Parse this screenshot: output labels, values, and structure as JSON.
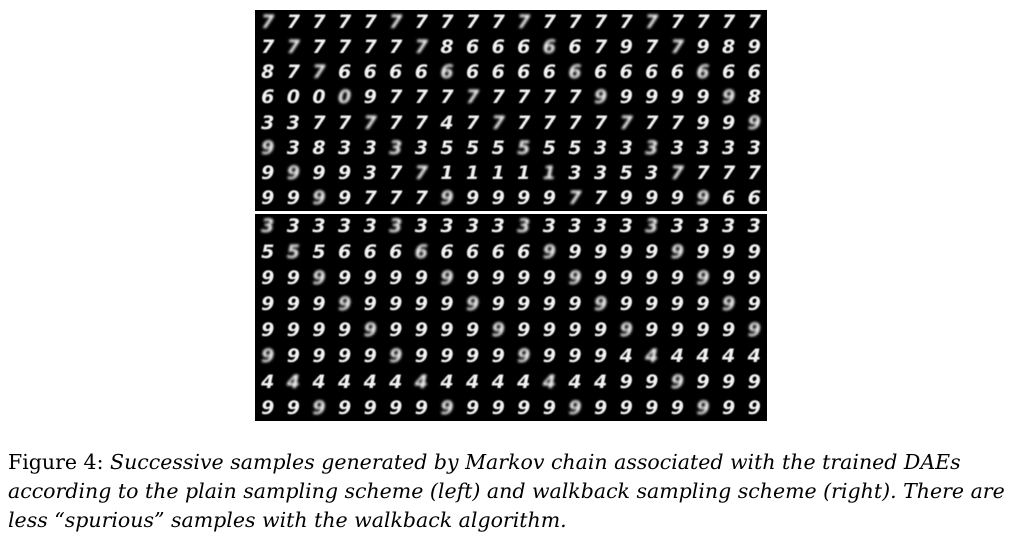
{
  "figure": {
    "top_panel": {
      "rows": [
        [
          "7",
          "7",
          "7",
          "7",
          "7",
          "7",
          "7",
          "7",
          "7",
          "7",
          "7",
          "7",
          "7",
          "7",
          "7",
          "7",
          "7",
          "7",
          "7",
          "7"
        ],
        [
          "7",
          "7",
          "7",
          "7",
          "7",
          "7",
          "7",
          "8",
          "6",
          "6",
          "6",
          "6",
          "6",
          "7",
          "9",
          "7",
          "7",
          "9",
          "8",
          "9"
        ],
        [
          "8",
          "7",
          "7",
          "6",
          "6",
          "6",
          "6",
          "6",
          "6",
          "6",
          "6",
          "6",
          "6",
          "6",
          "6",
          "6",
          "6",
          "6",
          "6",
          "6"
        ],
        [
          "6",
          "0",
          "0",
          "0",
          "9",
          "7",
          "7",
          "7",
          "7",
          "7",
          "7",
          "7",
          "7",
          "9",
          "9",
          "9",
          "9",
          "9",
          "9",
          "8"
        ],
        [
          "3",
          "3",
          "7",
          "7",
          "7",
          "7",
          "7",
          "4",
          "7",
          "7",
          "7",
          "7",
          "7",
          "7",
          "7",
          "7",
          "7",
          "9",
          "9",
          "9"
        ],
        [
          "9",
          "3",
          "8",
          "3",
          "3",
          "3",
          "3",
          "5",
          "5",
          "5",
          "5",
          "5",
          "5",
          "3",
          "3",
          "3",
          "3",
          "3",
          "3",
          "3"
        ],
        [
          "9",
          "9",
          "9",
          "9",
          "3",
          "7",
          "7",
          "1",
          "1",
          "1",
          "1",
          "1",
          "3",
          "3",
          "5",
          "3",
          "7",
          "7",
          "7",
          "7"
        ],
        [
          "9",
          "9",
          "9",
          "9",
          "7",
          "7",
          "7",
          "9",
          "9",
          "9",
          "9",
          "9",
          "7",
          "7",
          "9",
          "9",
          "9",
          "9",
          "6",
          "6"
        ]
      ]
    },
    "bottom_panel": {
      "rows": [
        [
          "3",
          "3",
          "3",
          "3",
          "3",
          "3",
          "3",
          "3",
          "3",
          "3",
          "3",
          "3",
          "3",
          "3",
          "3",
          "3",
          "3",
          "3",
          "3",
          "3"
        ],
        [
          "5",
          "5",
          "5",
          "6",
          "6",
          "6",
          "6",
          "6",
          "6",
          "6",
          "6",
          "9",
          "9",
          "9",
          "9",
          "9",
          "9",
          "9",
          "9",
          "9"
        ],
        [
          "9",
          "9",
          "9",
          "9",
          "9",
          "9",
          "9",
          "9",
          "9",
          "9",
          "9",
          "9",
          "9",
          "9",
          "9",
          "9",
          "9",
          "9",
          "9",
          "9"
        ],
        [
          "9",
          "9",
          "9",
          "9",
          "9",
          "9",
          "9",
          "9",
          "9",
          "9",
          "9",
          "9",
          "9",
          "9",
          "9",
          "9",
          "9",
          "9",
          "9",
          "9"
        ],
        [
          "9",
          "9",
          "9",
          "9",
          "9",
          "9",
          "9",
          "9",
          "9",
          "9",
          "9",
          "9",
          "9",
          "9",
          "9",
          "9",
          "9",
          "9",
          "9",
          "9"
        ],
        [
          "9",
          "9",
          "9",
          "9",
          "9",
          "9",
          "9",
          "9",
          "9",
          "9",
          "9",
          "9",
          "9",
          "9",
          "4",
          "4",
          "4",
          "4",
          "4",
          "4"
        ],
        [
          "4",
          "4",
          "4",
          "4",
          "4",
          "4",
          "4",
          "4",
          "4",
          "4",
          "4",
          "4",
          "4",
          "4",
          "9",
          "9",
          "9",
          "9",
          "9",
          "9"
        ],
        [
          "9",
          "9",
          "9",
          "9",
          "9",
          "9",
          "9",
          "9",
          "9",
          "9",
          "9",
          "9",
          "9",
          "9",
          "9",
          "9",
          "9",
          "9",
          "9",
          "9"
        ]
      ]
    }
  },
  "caption": {
    "label": "Figure 4: ",
    "text": "Successive samples generated by Markov chain associated with the trained DAEs according to the plain sampling scheme (left) and walkback sampling scheme (right). There are less “spurious” samples with the walkback algorithm."
  }
}
